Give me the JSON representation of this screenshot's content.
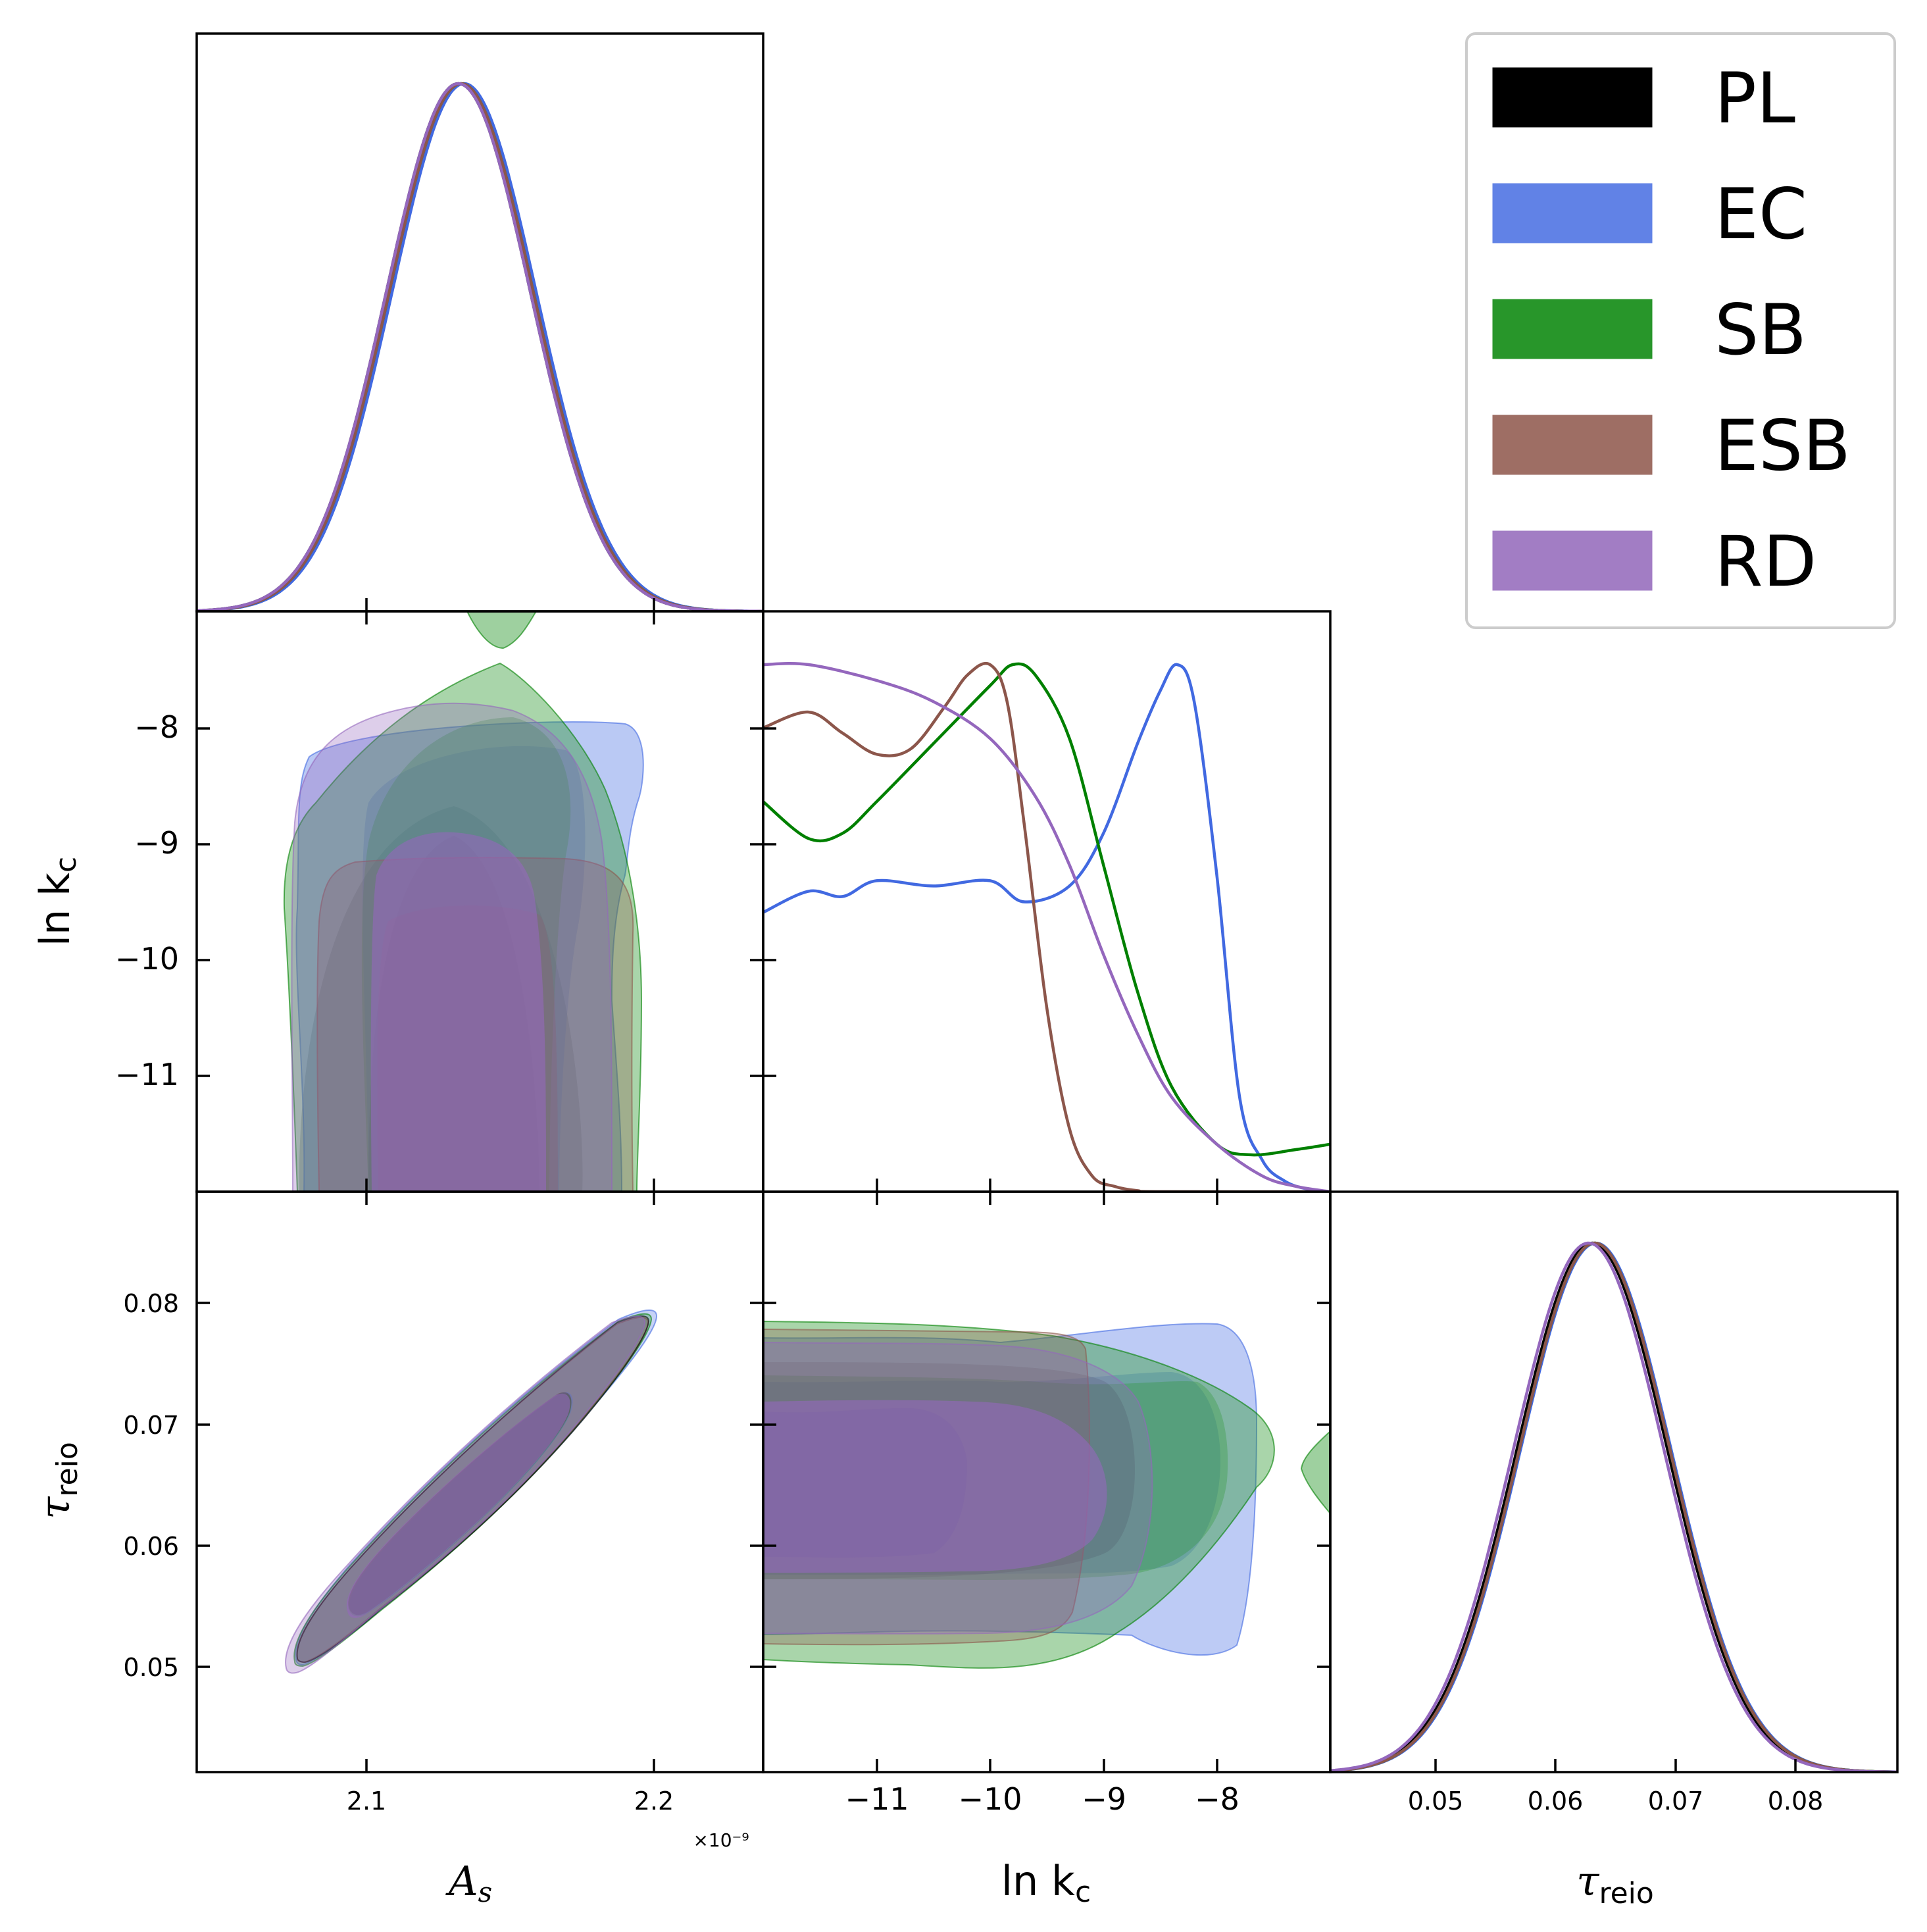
{
  "chart_data": [
    {
      "type": "line",
      "panel": "As-1D",
      "title": "",
      "xlabel": "A_s",
      "x_offset_label": "×10⁻⁹",
      "xlim": [
        2.041,
        2.238
      ],
      "xticks": [
        "2.1",
        "2.2"
      ],
      "series": [
        {
          "name": "PL",
          "mean": 2.132,
          "sigma": 0.025
        },
        {
          "name": "EC",
          "mean": 2.134,
          "sigma": 0.025
        },
        {
          "name": "SB",
          "mean": 2.133,
          "sigma": 0.025
        },
        {
          "name": "ESB",
          "mean": 2.133,
          "sigma": 0.025
        },
        {
          "name": "RD",
          "mean": 2.132,
          "sigma": 0.025
        }
      ]
    },
    {
      "type": "line",
      "panel": "lnkc-1D",
      "xlabel": "ln k_c",
      "xlim": [
        -12.0,
        -7.0
      ],
      "xticks": [
        "−11",
        "−10",
        "−9",
        "−8"
      ],
      "series": [
        {
          "name": "EC",
          "x": [
            -12.0,
            -11.6,
            -11.3,
            -11.0,
            -10.5,
            -10.0,
            -9.7,
            -9.3,
            -9.0,
            -8.7,
            -8.5,
            -8.35,
            -8.2,
            -8.0,
            -7.8,
            -7.6,
            -7.4,
            -7.2,
            -7.0
          ],
          "y": [
            0.53,
            0.57,
            0.56,
            0.59,
            0.58,
            0.59,
            0.55,
            0.58,
            0.68,
            0.85,
            0.95,
            1.0,
            0.93,
            0.6,
            0.18,
            0.06,
            0.02,
            0.005,
            0.0
          ]
        },
        {
          "name": "SB",
          "x": [
            -12.0,
            -11.6,
            -11.3,
            -11.0,
            -10.5,
            -10.0,
            -9.8,
            -9.6,
            -9.3,
            -9.0,
            -8.7,
            -8.4,
            -8.0,
            -7.7,
            -7.3,
            -7.0
          ],
          "y": [
            0.74,
            0.67,
            0.68,
            0.74,
            0.85,
            0.96,
            1.0,
            0.98,
            0.86,
            0.62,
            0.38,
            0.2,
            0.09,
            0.07,
            0.08,
            0.09
          ]
        },
        {
          "name": "ESB",
          "x": [
            -12.0,
            -11.6,
            -11.3,
            -11.0,
            -10.7,
            -10.4,
            -10.2,
            -10.0,
            -9.85,
            -9.7,
            -9.5,
            -9.3,
            -9.1,
            -8.9,
            -8.7,
            -8.5,
            -7.0
          ],
          "y": [
            0.88,
            0.91,
            0.87,
            0.83,
            0.84,
            0.92,
            0.98,
            1.0,
            0.93,
            0.7,
            0.35,
            0.12,
            0.03,
            0.01,
            0.002,
            0.0,
            0.0
          ]
        },
        {
          "name": "RD",
          "x": [
            -12.0,
            -11.6,
            -11.0,
            -10.5,
            -10.0,
            -9.6,
            -9.3,
            -9.0,
            -8.7,
            -8.4,
            -8.0,
            -7.6,
            -7.3,
            -7.0
          ],
          "y": [
            1.0,
            1.0,
            0.97,
            0.93,
            0.86,
            0.75,
            0.62,
            0.45,
            0.3,
            0.18,
            0.09,
            0.03,
            0.01,
            0.0
          ]
        }
      ]
    },
    {
      "type": "line",
      "panel": "tau-1D",
      "xlabel": "τ_reio",
      "xlim": [
        0.0413,
        0.0885
      ],
      "xticks": [
        "0.05",
        "0.06",
        "0.07",
        "0.08"
      ],
      "series": [
        {
          "name": "PL",
          "mean": 0.0631,
          "sigma": 0.0063
        },
        {
          "name": "EC",
          "mean": 0.0634,
          "sigma": 0.0063
        },
        {
          "name": "SB",
          "mean": 0.0633,
          "sigma": 0.0063
        },
        {
          "name": "ESB",
          "mean": 0.0633,
          "sigma": 0.0063
        },
        {
          "name": "RD",
          "mean": 0.0628,
          "sigma": 0.0063
        }
      ]
    },
    {
      "type": "scatter",
      "panel": "As-vs-lnkc",
      "xlabel": "",
      "ylabel": "ln k_c",
      "xlim": [
        2.041,
        2.238
      ],
      "ylim": [
        -12.0,
        -7.0
      ],
      "yticks": [
        "−8",
        "−9",
        "−10",
        "−11"
      ],
      "note": "2D confidence contours (68% and 95%)"
    },
    {
      "type": "scatter",
      "panel": "As-vs-tau",
      "xlabel": "A_s",
      "ylabel": "τ_reio",
      "xlim": [
        2.041,
        2.238
      ],
      "ylim": [
        0.0413,
        0.0885
      ],
      "yticks": [
        "0.08",
        "0.07",
        "0.06",
        "0.05"
      ],
      "note": "2D confidence contours (68% and 95%)"
    },
    {
      "type": "scatter",
      "panel": "lnkc-vs-tau",
      "xlabel": "ln k_c",
      "ylabel": "",
      "xlim": [
        -12.0,
        -7.0
      ],
      "ylim": [
        0.0413,
        0.0885
      ],
      "note": "2D confidence contours (68% and 95%)"
    }
  ],
  "labels": {
    "x_as_main": "A",
    "x_as_sub": "s",
    "x_as_offset": "×10⁻⁹",
    "x_lnkc_main": "ln k",
    "x_lnkc_sub": "c",
    "x_tau_main": "τ",
    "x_tau_sub": "reio",
    "y_lnkc_main": "ln k",
    "y_lnkc_sub": "c",
    "y_tau_main": "τ",
    "y_tau_sub": "reio"
  },
  "ticks": {
    "as": [
      "2.1",
      "2.2"
    ],
    "lnkc": [
      "−11",
      "−10",
      "−9",
      "−8"
    ],
    "tau": [
      "0.05",
      "0.06",
      "0.07",
      "0.08"
    ],
    "lnkc_y": [
      "−8",
      "−9",
      "−10",
      "−11"
    ],
    "tau_y": [
      "0.08",
      "0.07",
      "0.06",
      "0.05"
    ]
  },
  "legend": {
    "placement": "top-right",
    "items": [
      {
        "label": "PL",
        "color": "#000000"
      },
      {
        "label": "EC",
        "color": "#6182e6"
      },
      {
        "label": "SB",
        "color": "#28962a"
      },
      {
        "label": "ESB",
        "color": "#9e6e64"
      },
      {
        "label": "RD",
        "color": "#a27dc4"
      }
    ]
  },
  "colors": {
    "PL": "#000000",
    "EC": "#4169e1",
    "SB": "#008000",
    "ESB": "#8c564b",
    "RD": "#9467bd"
  }
}
